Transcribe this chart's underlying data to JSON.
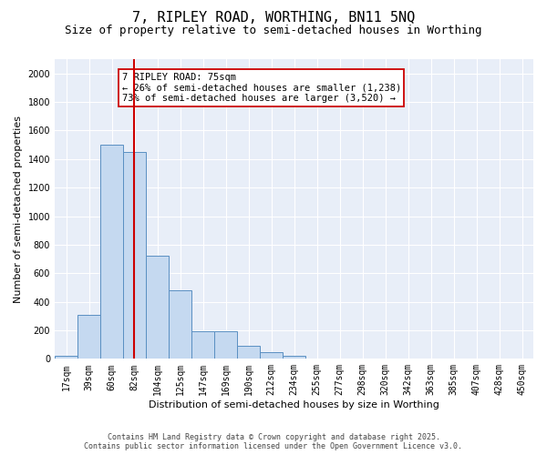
{
  "title_line1": "7, RIPLEY ROAD, WORTHING, BN11 5NQ",
  "title_line2": "Size of property relative to semi-detached houses in Worthing",
  "xlabel": "Distribution of semi-detached houses by size in Worthing",
  "ylabel": "Number of semi-detached properties",
  "bar_labels": [
    "17sqm",
    "39sqm",
    "60sqm",
    "82sqm",
    "104sqm",
    "125sqm",
    "147sqm",
    "169sqm",
    "190sqm",
    "212sqm",
    "234sqm",
    "255sqm",
    "277sqm",
    "298sqm",
    "320sqm",
    "342sqm",
    "363sqm",
    "385sqm",
    "407sqm",
    "428sqm",
    "450sqm"
  ],
  "bar_values": [
    20,
    310,
    1500,
    1450,
    720,
    480,
    195,
    195,
    90,
    45,
    20,
    0,
    0,
    0,
    0,
    0,
    0,
    0,
    0,
    0,
    0
  ],
  "bar_color": "#c5d9f0",
  "bar_edge_color": "#5a8fc2",
  "vline_x": 2.97,
  "vline_color": "#cc0000",
  "annotation_title": "7 RIPLEY ROAD: 75sqm",
  "annotation_line1": "← 26% of semi-detached houses are smaller (1,238)",
  "annotation_line2": "73% of semi-detached houses are larger (3,520) →",
  "ylim": [
    0,
    2100
  ],
  "yticks": [
    0,
    200,
    400,
    600,
    800,
    1000,
    1200,
    1400,
    1600,
    1800,
    2000
  ],
  "background_color": "#e8eef8",
  "grid_color": "#ffffff",
  "footer_line1": "Contains HM Land Registry data © Crown copyright and database right 2025.",
  "footer_line2": "Contains public sector information licensed under the Open Government Licence v3.0.",
  "title_fontsize": 11,
  "subtitle_fontsize": 9,
  "axis_label_fontsize": 8,
  "tick_fontsize": 7,
  "annotation_fontsize": 7.5,
  "footer_fontsize": 6
}
